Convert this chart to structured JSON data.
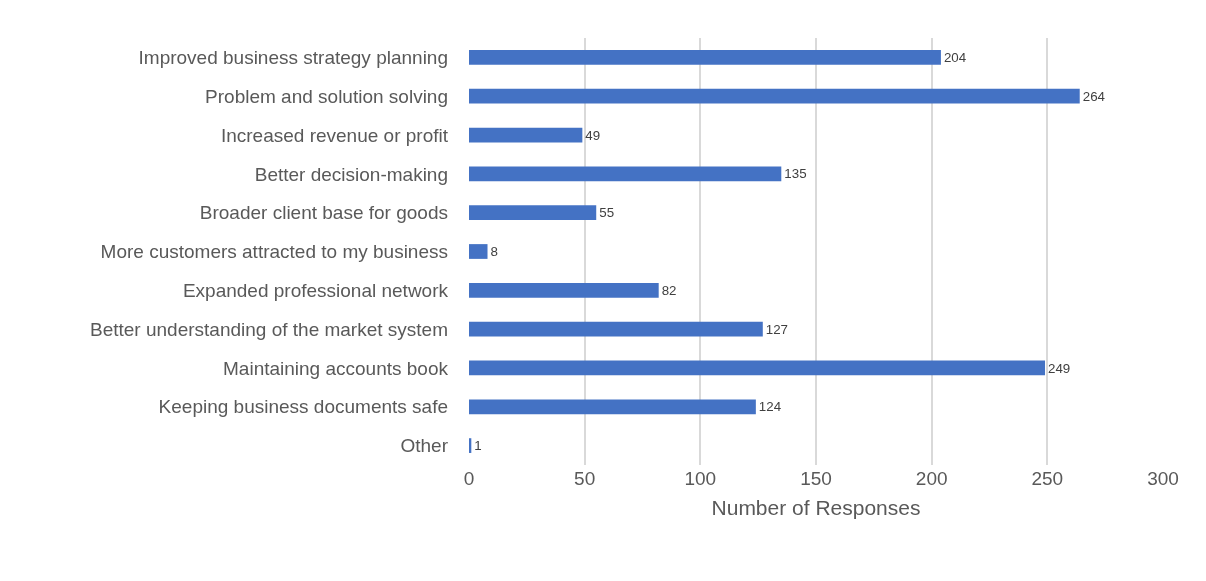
{
  "chart_data": {
    "type": "bar",
    "orientation": "horizontal",
    "xlabel": "Number of Responses",
    "categories": [
      "Improved business strategy planning",
      "Problem and solution solving",
      "Increased revenue or profit",
      "Better decision-making",
      "Broader client base for goods",
      "More customers attracted to my business",
      "Expanded professional network",
      "Better understanding of the market system",
      "Maintaining accounts book",
      "Keeping business documents safe",
      "Other"
    ],
    "values": [
      204,
      264,
      49,
      135,
      55,
      8,
      82,
      127,
      249,
      124,
      1
    ],
    "color": "#4472c4",
    "xlim": [
      0,
      300
    ],
    "xticks": [
      0,
      50,
      100,
      150,
      200,
      250,
      300
    ],
    "grid": "x",
    "data_labels": true
  }
}
